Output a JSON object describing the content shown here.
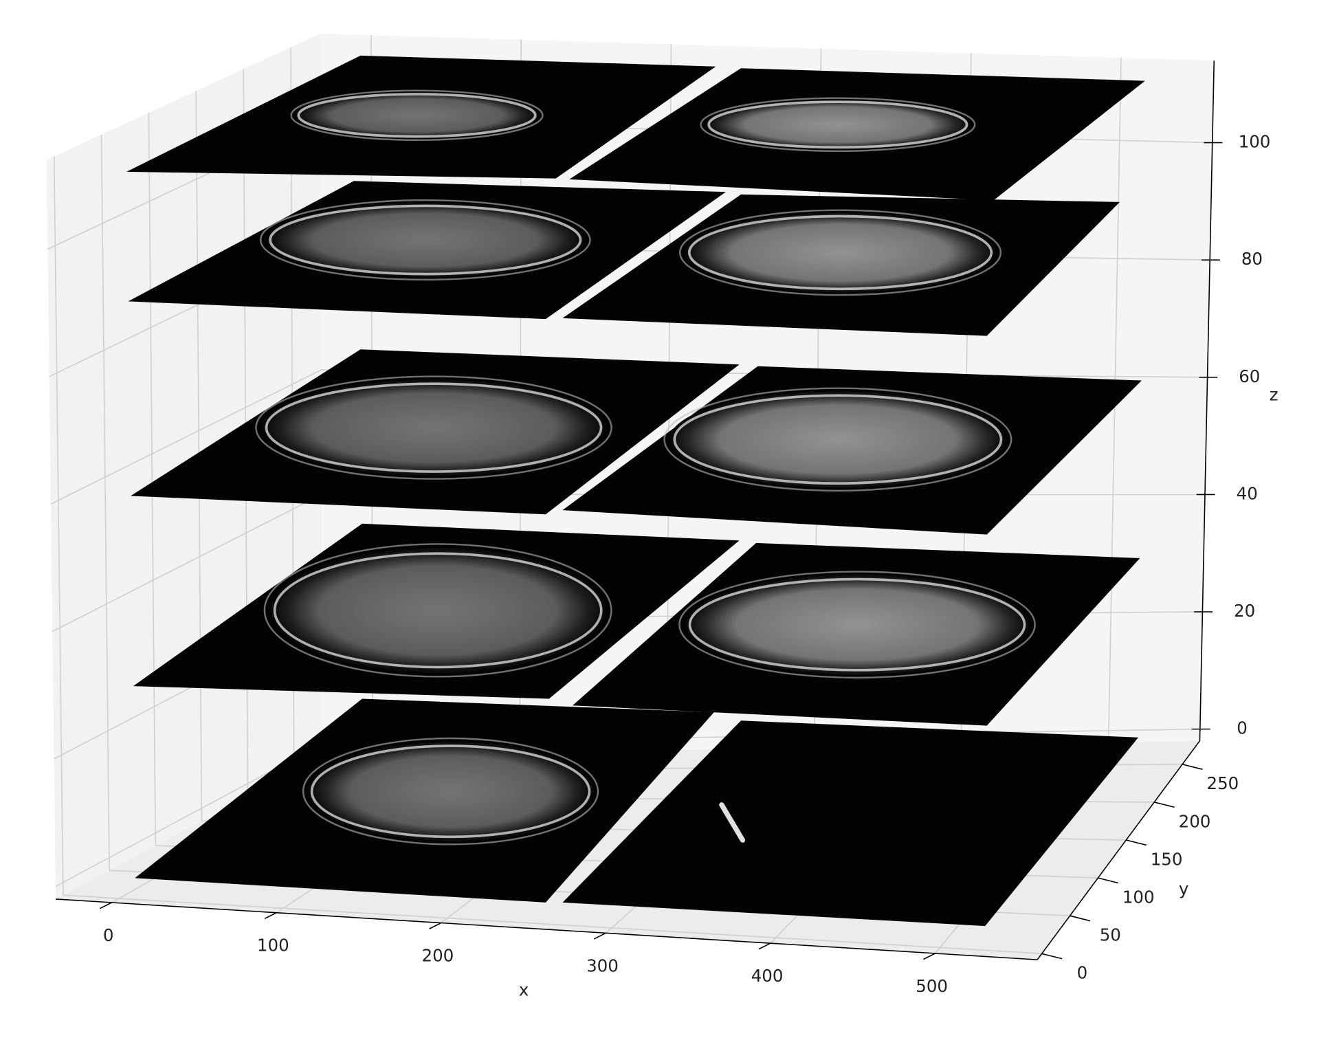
{
  "chart_data": {
    "type": "image3d",
    "xlabel": "x",
    "ylabel": "y",
    "zlabel": "z",
    "xlim": [
      -34,
      562
    ],
    "ylim": [
      -8,
      281
    ],
    "zlim": [
      -2,
      114
    ],
    "xticks": [
      0,
      100,
      200,
      300,
      400,
      500
    ],
    "yticks": [
      0,
      50,
      100,
      150,
      200,
      250
    ],
    "zticks": [
      0,
      20,
      40,
      60,
      80,
      100
    ],
    "grid": true
  }
}
